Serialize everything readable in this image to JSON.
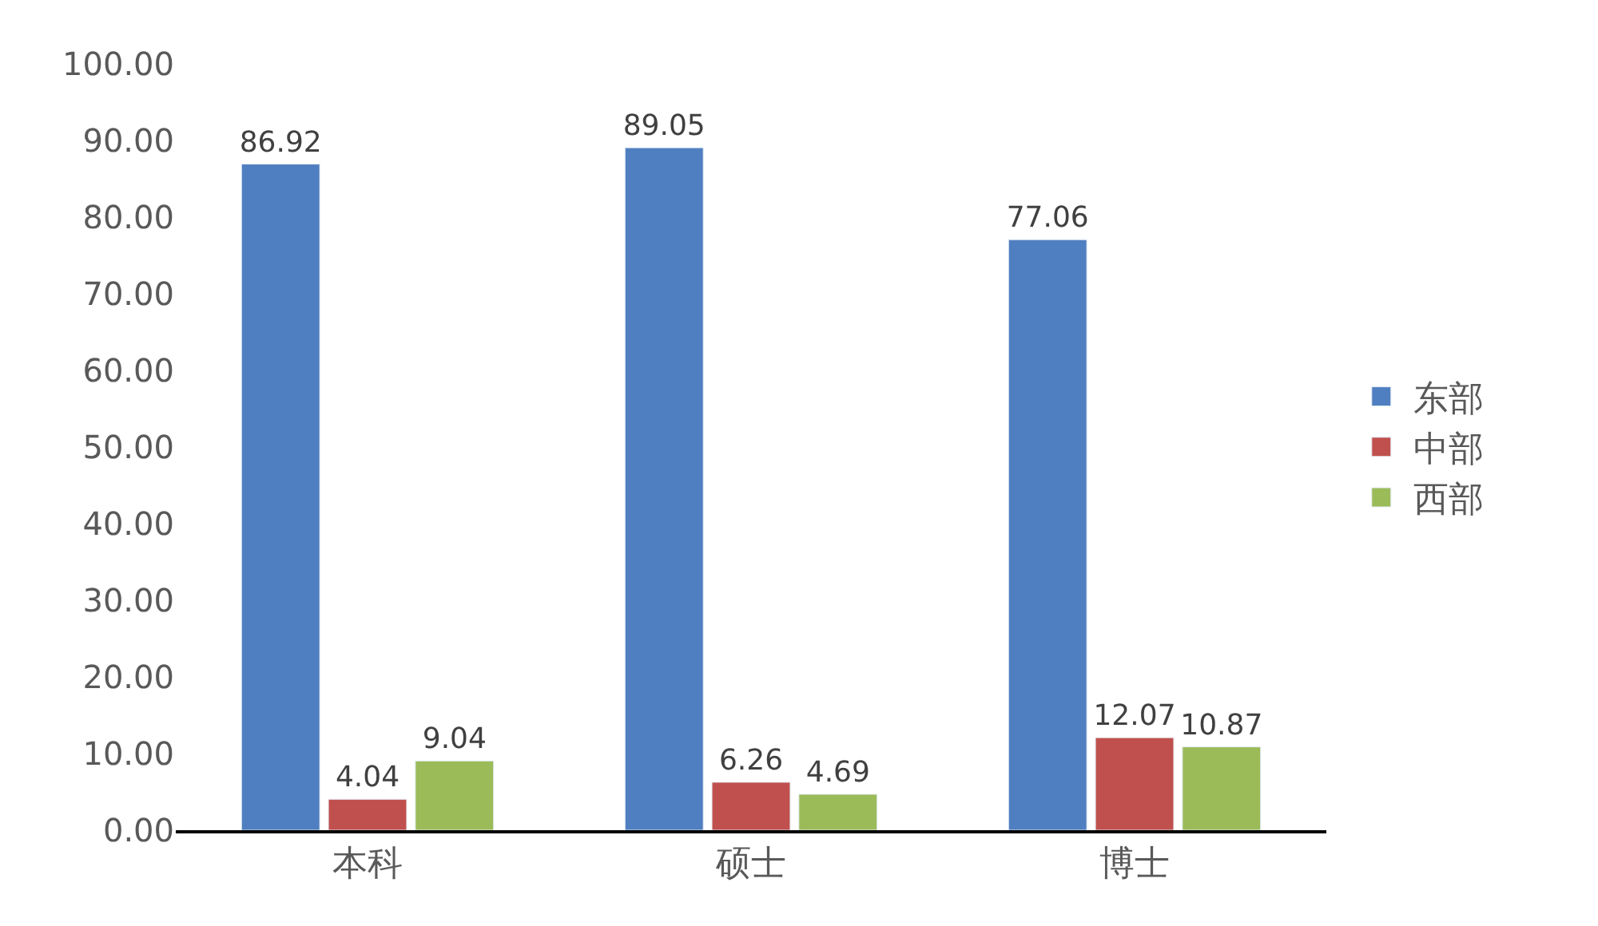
{
  "chart_data": {
    "type": "bar",
    "categories": [
      "本科",
      "硕士",
      "博士"
    ],
    "series": [
      {
        "name": "东部",
        "color": "#4f7fc0",
        "values": [
          86.92,
          89.05,
          77.06
        ]
      },
      {
        "name": "中部",
        "color": "#c0504d",
        "values": [
          4.04,
          6.26,
          12.07
        ]
      },
      {
        "name": "西部",
        "color": "#9bbb59",
        "values": [
          9.04,
          4.69,
          10.87
        ]
      }
    ],
    "ylim": [
      0,
      100
    ],
    "yticks": [
      {
        "value": 0,
        "label": "0.00"
      },
      {
        "value": 10,
        "label": "10.00"
      },
      {
        "value": 20,
        "label": "20.00"
      },
      {
        "value": 30,
        "label": "30.00"
      },
      {
        "value": 40,
        "label": "40.00"
      },
      {
        "value": 50,
        "label": "50.00"
      },
      {
        "value": 60,
        "label": "60.00"
      },
      {
        "value": 70,
        "label": "70.00"
      },
      {
        "value": 80,
        "label": "80.00"
      },
      {
        "value": 90,
        "label": "90.00"
      },
      {
        "value": 100,
        "label": "100.00"
      }
    ],
    "data_labels": true,
    "legend": "right"
  }
}
